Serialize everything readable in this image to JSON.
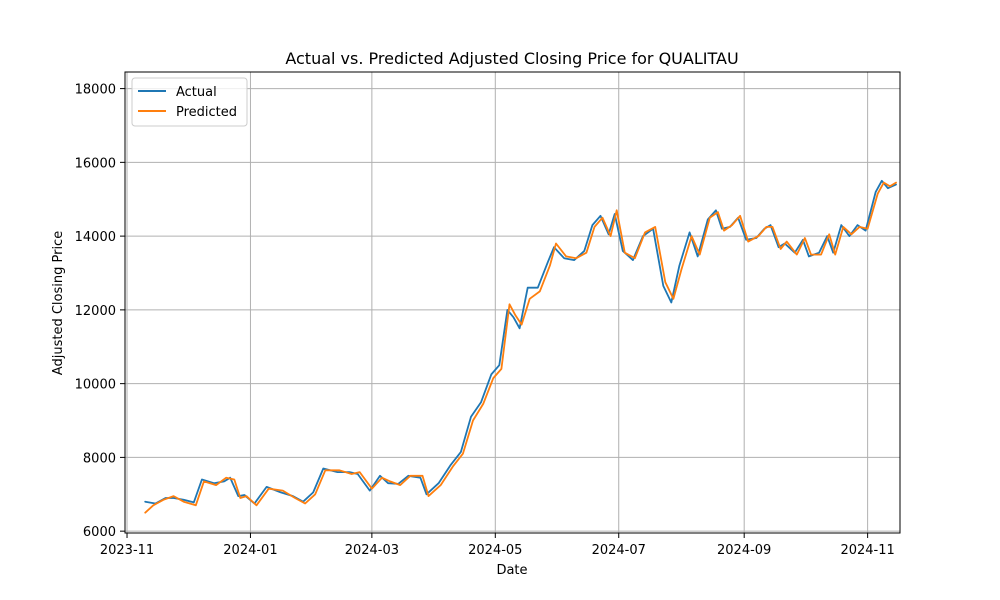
{
  "chart_data": {
    "type": "line",
    "title": "Actual vs. Predicted Adjusted Closing Price for QUALITAU",
    "xlabel": "Date",
    "ylabel": "Adjusted Closing Price",
    "x_range": [
      "2023-10-31",
      "2024-11-17"
    ],
    "ylim": [
      5950,
      18450
    ],
    "x_ticks": [
      "2023-11-01",
      "2024-01-01",
      "2024-03-01",
      "2024-05-01",
      "2024-07-01",
      "2024-09-01",
      "2024-11-01"
    ],
    "x_tick_labels": [
      "2023-11",
      "2024-01",
      "2024-03",
      "2024-05",
      "2024-07",
      "2024-09",
      "2024-11"
    ],
    "y_ticks": [
      6000,
      8000,
      10000,
      12000,
      14000,
      16000,
      18000
    ],
    "y_tick_labels": [
      "6000",
      "8000",
      "10000",
      "12000",
      "14000",
      "16000",
      "18000"
    ],
    "grid": true,
    "legend_position": "top-left",
    "series": [
      {
        "name": "Actual",
        "color": "#1f77b4",
        "points": [
          [
            "2023-11-10",
            6800
          ],
          [
            "2023-11-15",
            6750
          ],
          [
            "2023-11-20",
            6900
          ],
          [
            "2023-11-24",
            6900
          ],
          [
            "2023-11-29",
            6850
          ],
          [
            "2023-12-04",
            6780
          ],
          [
            "2023-12-08",
            7400
          ],
          [
            "2023-12-14",
            7300
          ],
          [
            "2023-12-19",
            7350
          ],
          [
            "2023-12-22",
            7450
          ],
          [
            "2023-12-26",
            6950
          ],
          [
            "2023-12-29",
            6980
          ],
          [
            "2024-01-03",
            6750
          ],
          [
            "2024-01-09",
            7200
          ],
          [
            "2024-01-16",
            7050
          ],
          [
            "2024-01-22",
            6950
          ],
          [
            "2024-01-27",
            6800
          ],
          [
            "2024-02-01",
            7050
          ],
          [
            "2024-02-06",
            7700
          ],
          [
            "2024-02-13",
            7600
          ],
          [
            "2024-02-19",
            7600
          ],
          [
            "2024-02-23",
            7550
          ],
          [
            "2024-02-29",
            7100
          ],
          [
            "2024-03-05",
            7500
          ],
          [
            "2024-03-09",
            7300
          ],
          [
            "2024-03-14",
            7280
          ],
          [
            "2024-03-19",
            7500
          ],
          [
            "2024-03-25",
            7450
          ],
          [
            "2024-03-28",
            7000
          ],
          [
            "2024-04-03",
            7300
          ],
          [
            "2024-04-09",
            7800
          ],
          [
            "2024-04-14",
            8150
          ],
          [
            "2024-04-19",
            9100
          ],
          [
            "2024-04-24",
            9500
          ],
          [
            "2024-04-29",
            10250
          ],
          [
            "2024-05-03",
            10500
          ],
          [
            "2024-05-07",
            12000
          ],
          [
            "2024-05-10",
            11800
          ],
          [
            "2024-05-13",
            11500
          ],
          [
            "2024-05-17",
            12600
          ],
          [
            "2024-05-22",
            12600
          ],
          [
            "2024-05-27",
            13300
          ],
          [
            "2024-05-30",
            13700
          ],
          [
            "2024-06-04",
            13400
          ],
          [
            "2024-06-09",
            13350
          ],
          [
            "2024-06-14",
            13600
          ],
          [
            "2024-06-18",
            14300
          ],
          [
            "2024-06-22",
            14550
          ],
          [
            "2024-06-26",
            14050
          ],
          [
            "2024-06-29",
            14600
          ],
          [
            "2024-07-03",
            13600
          ],
          [
            "2024-07-08",
            13350
          ],
          [
            "2024-07-13",
            14000
          ],
          [
            "2024-07-18",
            14200
          ],
          [
            "2024-07-23",
            12650
          ],
          [
            "2024-07-27",
            12200
          ],
          [
            "2024-07-31",
            13200
          ],
          [
            "2024-08-05",
            14100
          ],
          [
            "2024-08-09",
            13450
          ],
          [
            "2024-08-14",
            14450
          ],
          [
            "2024-08-18",
            14700
          ],
          [
            "2024-08-21",
            14200
          ],
          [
            "2024-08-25",
            14250
          ],
          [
            "2024-08-29",
            14500
          ],
          [
            "2024-09-02",
            13900
          ],
          [
            "2024-09-07",
            13950
          ],
          [
            "2024-09-11",
            14200
          ],
          [
            "2024-09-14",
            14300
          ],
          [
            "2024-09-18",
            13700
          ],
          [
            "2024-09-21",
            13800
          ],
          [
            "2024-09-26",
            13550
          ],
          [
            "2024-09-30",
            13900
          ],
          [
            "2024-10-03",
            13450
          ],
          [
            "2024-10-08",
            13550
          ],
          [
            "2024-10-12",
            14000
          ],
          [
            "2024-10-15",
            13550
          ],
          [
            "2024-10-19",
            14300
          ],
          [
            "2024-10-23",
            14000
          ],
          [
            "2024-10-27",
            14300
          ],
          [
            "2024-10-31",
            14150
          ],
          [
            "2024-11-05",
            15200
          ],
          [
            "2024-11-08",
            15500
          ],
          [
            "2024-11-11",
            15300
          ],
          [
            "2024-11-15",
            15400
          ]
        ]
      },
      {
        "name": "Predicted",
        "color": "#ff7f0e",
        "points": [
          [
            "2023-11-10",
            6500
          ],
          [
            "2023-11-14",
            6700
          ],
          [
            "2023-11-19",
            6850
          ],
          [
            "2023-11-24",
            6950
          ],
          [
            "2023-11-29",
            6800
          ],
          [
            "2023-12-05",
            6700
          ],
          [
            "2023-12-09",
            7350
          ],
          [
            "2023-12-15",
            7250
          ],
          [
            "2023-12-20",
            7450
          ],
          [
            "2023-12-24",
            7400
          ],
          [
            "2023-12-27",
            6900
          ],
          [
            "2023-12-30",
            6950
          ],
          [
            "2024-01-04",
            6700
          ],
          [
            "2024-01-10",
            7150
          ],
          [
            "2024-01-17",
            7100
          ],
          [
            "2024-01-23",
            6900
          ],
          [
            "2024-01-28",
            6750
          ],
          [
            "2024-02-02",
            7000
          ],
          [
            "2024-02-07",
            7650
          ],
          [
            "2024-02-14",
            7650
          ],
          [
            "2024-02-20",
            7550
          ],
          [
            "2024-02-24",
            7600
          ],
          [
            "2024-03-01",
            7150
          ],
          [
            "2024-03-06",
            7450
          ],
          [
            "2024-03-10",
            7350
          ],
          [
            "2024-03-15",
            7250
          ],
          [
            "2024-03-20",
            7500
          ],
          [
            "2024-03-26",
            7500
          ],
          [
            "2024-03-29",
            6950
          ],
          [
            "2024-04-04",
            7250
          ],
          [
            "2024-04-10",
            7750
          ],
          [
            "2024-04-15",
            8100
          ],
          [
            "2024-04-20",
            9000
          ],
          [
            "2024-04-25",
            9450
          ],
          [
            "2024-04-30",
            10150
          ],
          [
            "2024-05-04",
            10400
          ],
          [
            "2024-05-08",
            12150
          ],
          [
            "2024-05-11",
            11850
          ],
          [
            "2024-05-14",
            11600
          ],
          [
            "2024-05-18",
            12300
          ],
          [
            "2024-05-23",
            12500
          ],
          [
            "2024-05-28",
            13200
          ],
          [
            "2024-05-31",
            13800
          ],
          [
            "2024-06-05",
            13450
          ],
          [
            "2024-06-10",
            13400
          ],
          [
            "2024-06-15",
            13550
          ],
          [
            "2024-06-19",
            14250
          ],
          [
            "2024-06-23",
            14500
          ],
          [
            "2024-06-27",
            14000
          ],
          [
            "2024-06-30",
            14700
          ],
          [
            "2024-07-04",
            13550
          ],
          [
            "2024-07-09",
            13400
          ],
          [
            "2024-07-14",
            14100
          ],
          [
            "2024-07-19",
            14250
          ],
          [
            "2024-07-24",
            12750
          ],
          [
            "2024-07-28",
            12300
          ],
          [
            "2024-08-01",
            13100
          ],
          [
            "2024-08-06",
            14000
          ],
          [
            "2024-08-10",
            13500
          ],
          [
            "2024-08-15",
            14500
          ],
          [
            "2024-08-19",
            14650
          ],
          [
            "2024-08-22",
            14150
          ],
          [
            "2024-08-26",
            14300
          ],
          [
            "2024-08-30",
            14550
          ],
          [
            "2024-09-03",
            13850
          ],
          [
            "2024-09-08",
            14000
          ],
          [
            "2024-09-12",
            14250
          ],
          [
            "2024-09-15",
            14250
          ],
          [
            "2024-09-19",
            13650
          ],
          [
            "2024-09-22",
            13850
          ],
          [
            "2024-09-27",
            13500
          ],
          [
            "2024-10-01",
            13950
          ],
          [
            "2024-10-04",
            13500
          ],
          [
            "2024-10-09",
            13500
          ],
          [
            "2024-10-13",
            14050
          ],
          [
            "2024-10-16",
            13500
          ],
          [
            "2024-10-20",
            14250
          ],
          [
            "2024-10-24",
            14050
          ],
          [
            "2024-10-28",
            14250
          ],
          [
            "2024-11-01",
            14200
          ],
          [
            "2024-11-06",
            15150
          ],
          [
            "2024-11-09",
            15450
          ],
          [
            "2024-11-12",
            15350
          ],
          [
            "2024-11-15",
            15450
          ]
        ]
      }
    ]
  }
}
